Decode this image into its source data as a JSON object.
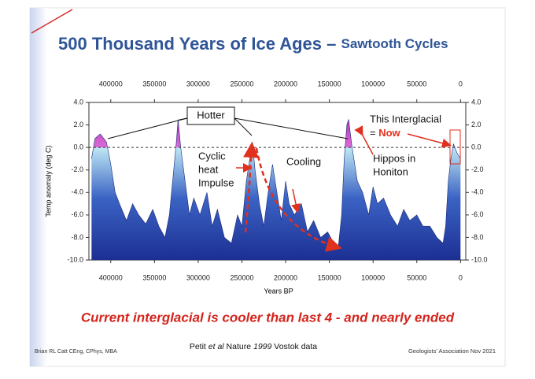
{
  "chart_data": {
    "type": "area",
    "title": [
      "500 Thousand Years of Ice Ages –",
      "Sawtooth Cycles"
    ],
    "subtitle": "Current interglacial is cooler than last 4 - and nearly ended",
    "x_label": "Years BP",
    "y_label": "Temp anomaly (deg C)",
    "x": [
      422000,
      418000,
      412000,
      405000,
      400000,
      395000,
      390000,
      382000,
      375000,
      368000,
      360000,
      352000,
      345000,
      338000,
      333000,
      328000,
      325000,
      323000,
      320000,
      315000,
      310000,
      305000,
      298000,
      290000,
      284000,
      278000,
      270000,
      262000,
      255000,
      250000,
      245000,
      240000,
      238000,
      235000,
      230000,
      225000,
      220000,
      215000,
      210000,
      205000,
      200000,
      196000,
      190000,
      182000,
      175000,
      168000,
      160000,
      152000,
      145000,
      140000,
      136000,
      133000,
      130000,
      128000,
      124000,
      118000,
      112000,
      105000,
      100000,
      95000,
      88000,
      80000,
      72000,
      65000,
      58000,
      50000,
      43000,
      35000,
      27000,
      20000,
      17000,
      14000,
      11000,
      8000,
      4000,
      0
    ],
    "values": [
      -1,
      0.8,
      1.2,
      0.5,
      -1.5,
      -4,
      -5,
      -6.5,
      -5,
      -6,
      -6.8,
      -5.5,
      -7,
      -8,
      -6,
      -2,
      0.5,
      2.5,
      0,
      -3,
      -6,
      -4.5,
      -6,
      -4,
      -7,
      -5.5,
      -8,
      -8.5,
      -6,
      -7,
      -3,
      -0.5,
      0.5,
      -2,
      -5,
      -7,
      -4,
      -1.5,
      -4,
      -6.5,
      -3,
      -5,
      -6,
      -5,
      -7.5,
      -6.5,
      -8,
      -7.5,
      -8.5,
      -9,
      -6,
      -1,
      2,
      2.5,
      0,
      -3,
      -4,
      -6,
      -3.5,
      -5,
      -4.5,
      -6,
      -7,
      -5.5,
      -6.5,
      -6,
      -7,
      -7,
      -8,
      -8.5,
      -7,
      -3,
      -1,
      0.3,
      -0.5,
      -1
    ],
    "color": "#1c2f93",
    "warm_color": "#d96ad9",
    "reference_line": 0,
    "xlim": [
      425000,
      -6000
    ],
    "ylim": [
      -10,
      4
    ],
    "xticks": [
      400000,
      350000,
      300000,
      250000,
      200000,
      150000,
      100000,
      50000,
      0
    ],
    "yticks": [
      {
        "value": -10,
        "label": "-10.0"
      },
      {
        "value": -8,
        "label": "-8.0"
      },
      {
        "value": -6,
        "label": "-6.0"
      },
      {
        "value": -4,
        "label": "-4.0"
      },
      {
        "value": -2,
        "label": "-2.0"
      },
      {
        "value": 0,
        "label": "0.0"
      },
      {
        "value": 2,
        "label": "2.0"
      },
      {
        "value": 4,
        "label": "4.0"
      }
    ],
    "annotations": {
      "hotter": "Hotter",
      "impulse": [
        "Cyclic",
        "heat",
        "Impulse"
      ],
      "cooling": "Cooling",
      "now": [
        "This Interglacial",
        "= ",
        "Now"
      ],
      "hippos": [
        "Hippos in",
        "Honiton"
      ]
    }
  },
  "footer": {
    "author": "Brian RL Catt CEng, CPhys, MBA",
    "source": [
      "Petit ",
      "et al",
      " Nature ",
      "1999",
      " Vostok data"
    ],
    "venue": "Geologists’ Association Nov 2021"
  }
}
